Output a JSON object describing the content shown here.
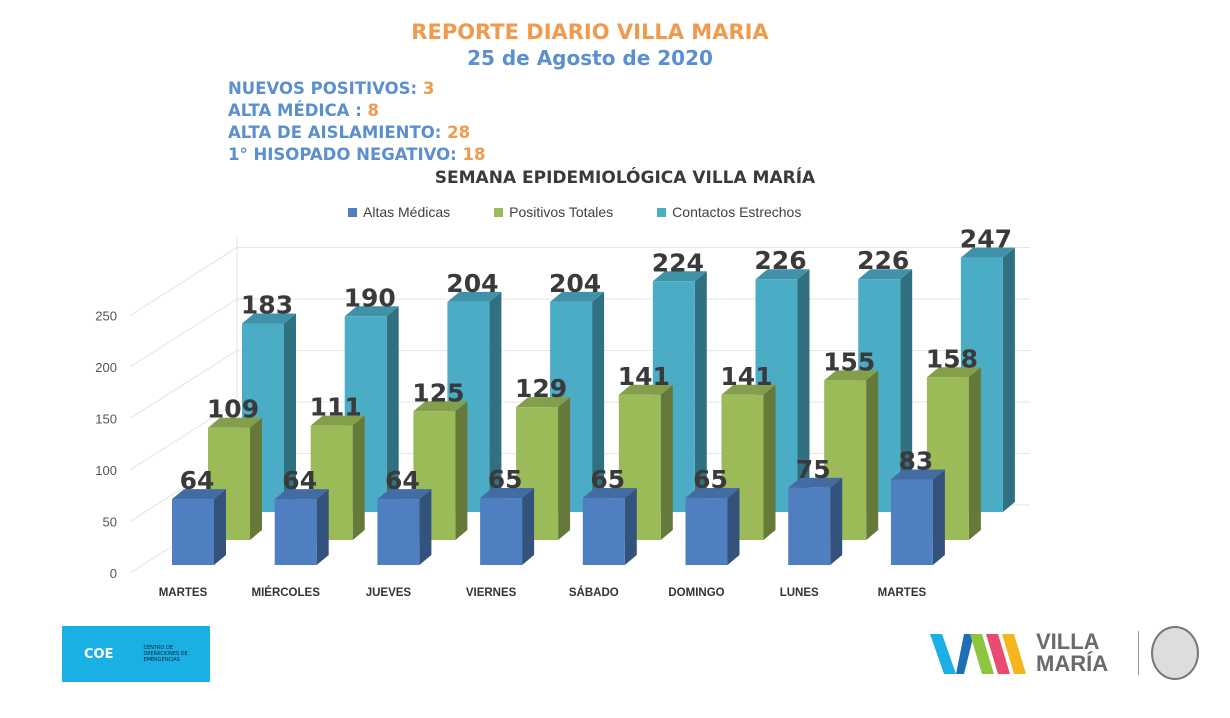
{
  "header": {
    "title": "REPORTE DIARIO VILLA MARIA",
    "date": "25 de Agosto de 2020"
  },
  "stats": [
    {
      "label": "NUEVOS POSITIVOS: ",
      "value": "3"
    },
    {
      "label": "ALTA MÉDICA : ",
      "value": "8"
    },
    {
      "label": "ALTA DE AISLAMIENTO: ",
      "value": "28"
    },
    {
      "label": "1° HISOPADO NEGATIVO: ",
      "value": "18"
    }
  ],
  "logos": {
    "coe": "COE",
    "coe_sub": "CENTRO DE OPERACIONES DE EMERGENCIAS",
    "vm": "VILLA MARÍA"
  },
  "chart_data": {
    "type": "bar",
    "title": "SEMANA EPIDEMIOLÓGICA VILLA MARÍA",
    "categories": [
      "MARTES",
      "MIÉRCOLES",
      "JUEVES",
      "VIERNES",
      "SÁBADO",
      "DOMINGO",
      "LUNES",
      "MARTES"
    ],
    "series": [
      {
        "name": "Altas Médicas",
        "color": "#4f7fc0",
        "values": [
          64,
          64,
          64,
          65,
          65,
          65,
          75,
          83
        ]
      },
      {
        "name": "Positivos Totales",
        "color": "#9bbb59",
        "values": [
          109,
          111,
          125,
          129,
          141,
          141,
          155,
          158
        ]
      },
      {
        "name": "Contactos Estrechos",
        "color": "#4bacc6",
        "values": [
          183,
          190,
          204,
          204,
          224,
          226,
          226,
          247
        ]
      }
    ],
    "yticks": [
      0,
      50,
      100,
      150,
      200,
      250
    ],
    "ylim": [
      0,
      250
    ],
    "legend": "top",
    "grid": true
  }
}
